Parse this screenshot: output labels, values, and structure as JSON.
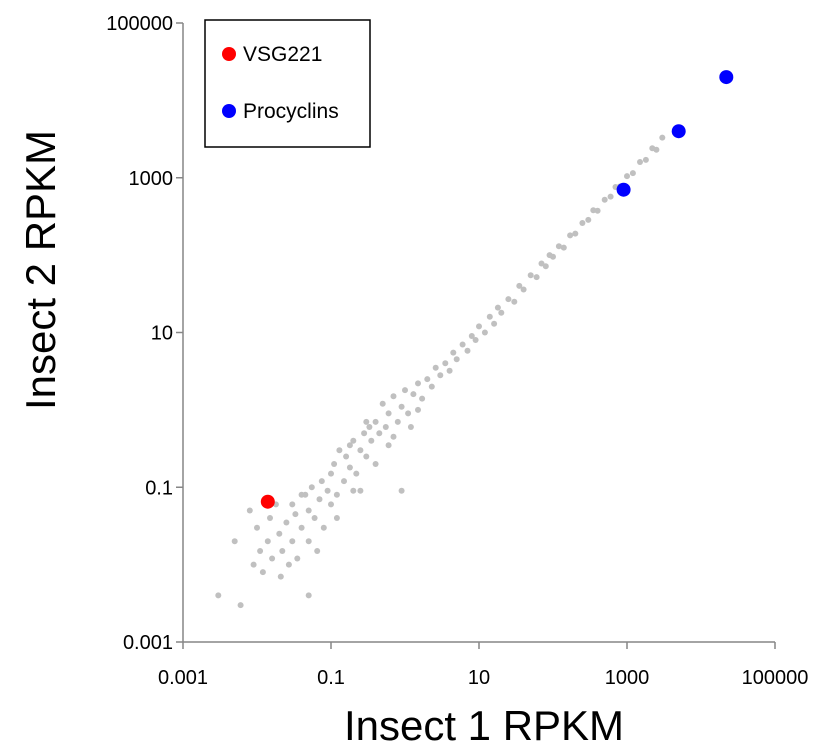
{
  "chart_data": {
    "type": "scatter",
    "xlabel": "Insect 1 RPKM",
    "ylabel": "Insect 2 RPKM",
    "x_scale": "log",
    "y_scale": "log",
    "xlim": [
      0.001,
      100000
    ],
    "ylim": [
      0.001,
      100000
    ],
    "x_ticks": [
      "0.001",
      "0.1",
      "10",
      "1000",
      "100000"
    ],
    "y_ticks": [
      "0.001",
      "0.1",
      "10",
      "1000",
      "100000"
    ],
    "grid": false,
    "legend_position": "top-left",
    "colors": {
      "background_genes": "#c0c0c0",
      "vsg221": "#ff0000",
      "procyclins": "#0000ff"
    },
    "series": [
      {
        "name": "",
        "color": "#c0c0c0",
        "points": [
          [
            0.005,
            0.02
          ],
          [
            0.008,
            0.05
          ],
          [
            0.009,
            0.01
          ],
          [
            0.01,
            0.03
          ],
          [
            0.011,
            0.015
          ],
          [
            0.012,
            0.008
          ],
          [
            0.014,
            0.02
          ],
          [
            0.015,
            0.04
          ],
          [
            0.016,
            0.012
          ],
          [
            0.018,
            0.06
          ],
          [
            0.02,
            0.025
          ],
          [
            0.021,
            0.007
          ],
          [
            0.022,
            0.015
          ],
          [
            0.025,
            0.035
          ],
          [
            0.027,
            0.01
          ],
          [
            0.03,
            0.02
          ],
          [
            0.03,
            0.06
          ],
          [
            0.033,
            0.045
          ],
          [
            0.035,
            0.012
          ],
          [
            0.04,
            0.03
          ],
          [
            0.045,
            0.08
          ],
          [
            0.05,
            0.02
          ],
          [
            0.05,
            0.05
          ],
          [
            0.055,
            0.1
          ],
          [
            0.06,
            0.04
          ],
          [
            0.065,
            0.015
          ],
          [
            0.07,
            0.07
          ],
          [
            0.075,
            0.12
          ],
          [
            0.08,
            0.03
          ],
          [
            0.09,
            0.09
          ],
          [
            0.1,
            0.06
          ],
          [
            0.1,
            0.15
          ],
          [
            0.11,
            0.2
          ],
          [
            0.12,
            0.08
          ],
          [
            0.13,
            0.3
          ],
          [
            0.15,
            0.12
          ],
          [
            0.16,
            0.25
          ],
          [
            0.18,
            0.18
          ],
          [
            0.2,
            0.4
          ],
          [
            0.22,
            0.15
          ],
          [
            0.25,
            0.3
          ],
          [
            0.28,
            0.5
          ],
          [
            0.3,
            0.25
          ],
          [
            0.33,
            0.6
          ],
          [
            0.35,
            0.4
          ],
          [
            0.4,
            0.7
          ],
          [
            0.45,
            0.5
          ],
          [
            0.5,
            1.2
          ],
          [
            0.55,
            0.6
          ],
          [
            0.6,
            0.9
          ],
          [
            0.7,
            1.5
          ],
          [
            0.8,
            0.7
          ],
          [
            0.9,
            1.1
          ],
          [
            1.0,
            1.8
          ],
          [
            1.1,
            0.9
          ],
          [
            1.3,
            1.6
          ],
          [
            1.5,
            2.2
          ],
          [
            1.7,
            1.4
          ],
          [
            2.0,
            2.5
          ],
          [
            2.3,
            2.0
          ],
          [
            2.6,
            3.5
          ],
          [
            3.0,
            2.8
          ],
          [
            3.5,
            4.0
          ],
          [
            4.0,
            3.2
          ],
          [
            4.5,
            5.5
          ],
          [
            5.0,
            4.5
          ],
          [
            6.0,
            7.0
          ],
          [
            7.0,
            5.8
          ],
          [
            8.0,
            9.0
          ],
          [
            9.0,
            8.0
          ],
          [
            10,
            12
          ],
          [
            12,
            10
          ],
          [
            14,
            16
          ],
          [
            16,
            13
          ],
          [
            18,
            21
          ],
          [
            20,
            18
          ],
          [
            25,
            27
          ],
          [
            30,
            25
          ],
          [
            35,
            40
          ],
          [
            40,
            36
          ],
          [
            50,
            55
          ],
          [
            60,
            52
          ],
          [
            70,
            78
          ],
          [
            80,
            72
          ],
          [
            90,
            100
          ],
          [
            100,
            95
          ],
          [
            120,
            130
          ],
          [
            140,
            125
          ],
          [
            170,
            180
          ],
          [
            200,
            190
          ],
          [
            250,
            260
          ],
          [
            300,
            285
          ],
          [
            350,
            380
          ],
          [
            400,
            375
          ],
          [
            500,
            520
          ],
          [
            600,
            570
          ],
          [
            700,
            760
          ],
          [
            800,
            770
          ],
          [
            1000,
            1050
          ],
          [
            1200,
            1150
          ],
          [
            1500,
            1600
          ],
          [
            1800,
            1700
          ],
          [
            2200,
            2400
          ],
          [
            2500,
            2300
          ],
          [
            3000,
            3300
          ],
          [
            0.003,
            0.004
          ],
          [
            0.006,
            0.003
          ],
          [
            0.05,
            0.004
          ],
          [
            0.04,
            0.08
          ],
          [
            0.12,
            0.04
          ],
          [
            0.2,
            0.09
          ],
          [
            0.3,
            0.7
          ],
          [
            0.4,
            0.2
          ],
          [
            0.6,
            0.35
          ],
          [
            0.9,
            0.09
          ],
          [
            0.25,
            0.09
          ],
          [
            0.18,
            0.35
          ],
          [
            0.7,
            0.45
          ],
          [
            1.2,
            0.6
          ],
          [
            1.5,
            1.0
          ]
        ]
      },
      {
        "name": "VSG221",
        "color": "#ff0000",
        "points": [
          [
            0.014,
            0.065
          ]
        ]
      },
      {
        "name": "Procyclins",
        "color": "#0000ff",
        "points": [
          [
            900,
            700
          ],
          [
            5000,
            4000
          ],
          [
            22000,
            20000
          ]
        ]
      }
    ]
  }
}
